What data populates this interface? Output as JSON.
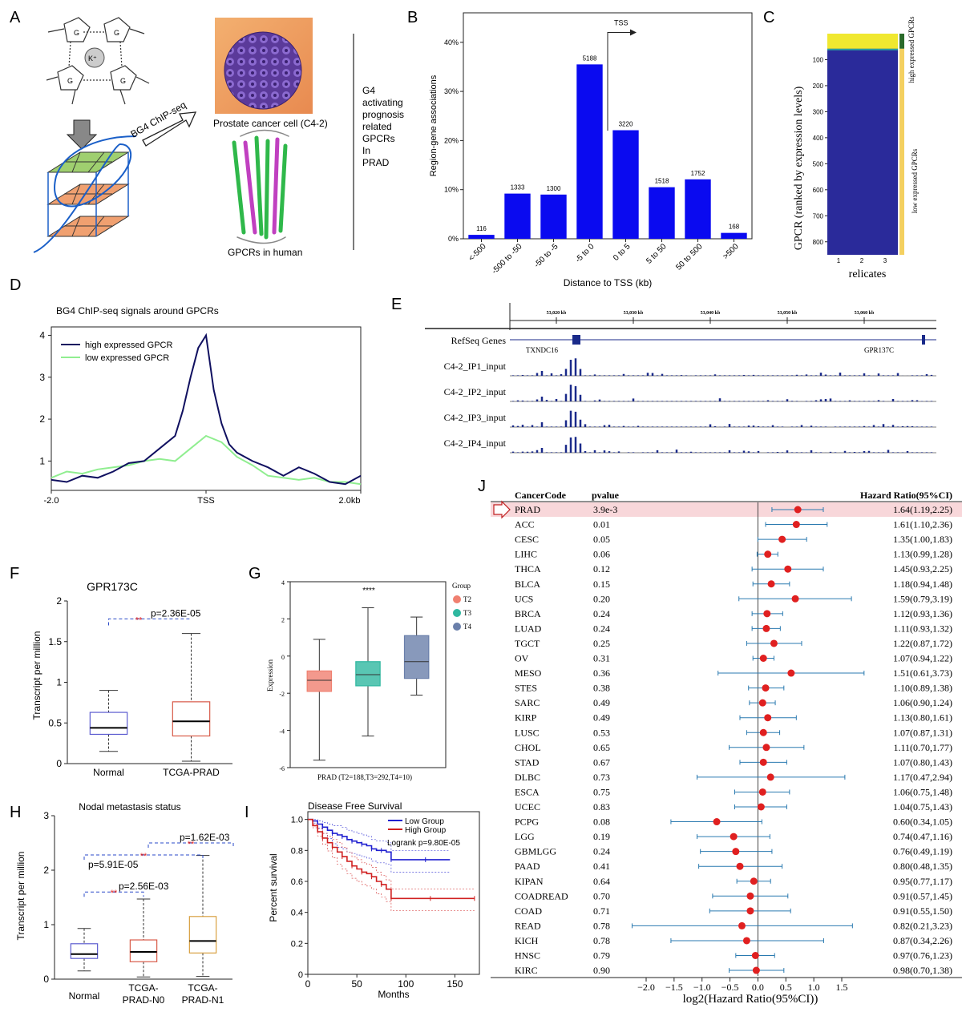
{
  "panels": {
    "A": "A",
    "B": "B",
    "C": "C",
    "D": "D",
    "E": "E",
    "F": "F",
    "G": "G",
    "H": "H",
    "I": "I",
    "J": "J"
  },
  "panelA": {
    "ion_label": "K⁺",
    "g_label": "G",
    "method": "BG4 ChIP-seq",
    "cell_caption": "Prostate cancer cell (C4-2)",
    "gpcr_caption": "GPCRs in human",
    "side_text": [
      "G4",
      "activating",
      "prognosis",
      "related",
      "GPCRs",
      "In",
      "PRAD"
    ]
  },
  "chart_data": [
    {
      "id": "B",
      "type": "bar",
      "categories": [
        "<-500",
        "-500 to -50",
        "-50 to -5",
        "-5 to 0",
        "0 to 5",
        "5 to 50",
        "50 to 500",
        ">500"
      ],
      "values": [
        0.8,
        9.2,
        9.0,
        35.5,
        22.1,
        10.5,
        12.1,
        1.2
      ],
      "data_labels": [
        "116",
        "1333",
        "1300",
        "5188",
        "3220",
        "1518",
        "1752",
        "168"
      ],
      "xlabel": "Distance to TSS (kb)",
      "ylabel": "Region-gene associations",
      "yticks": [
        "0%",
        "10%",
        "20%",
        "30%",
        "40%"
      ],
      "ylim": [
        0,
        46
      ],
      "annotation": "TSS",
      "color": "#0a0af0"
    },
    {
      "id": "C",
      "type": "heatmap",
      "ylabel": "GPCR (ranked by expression levels)",
      "xlabel": "relicates",
      "xticks": [
        "1",
        "2",
        "3"
      ],
      "yticks": [
        "100",
        "200",
        "300",
        "400",
        "500",
        "600",
        "700",
        "800"
      ],
      "ylim": [
        0,
        850
      ],
      "high_band": [
        0,
        58
      ],
      "mid_band": [
        58,
        64
      ],
      "side_high": "high expressed GPCRs",
      "side_low": "low expressed GPCRs",
      "colors": {
        "high": "#f0e830",
        "mid": "#2aa0a0",
        "low": "#2a2a9a"
      }
    },
    {
      "id": "D",
      "type": "line",
      "title": "BG4 ChIP-seq signals around GPCRs",
      "xticks": [
        "-2.0",
        "TSS",
        "2.0kb"
      ],
      "yticks": [
        "1",
        "2",
        "3",
        "4"
      ],
      "ylim": [
        0.3,
        4.2
      ],
      "series": [
        {
          "name": "high expressed GPCR",
          "color": "#101060",
          "x": [
            -2,
            -1.8,
            -1.6,
            -1.4,
            -1.2,
            -1.0,
            -0.8,
            -0.6,
            -0.4,
            -0.3,
            -0.2,
            -0.1,
            0,
            0.1,
            0.2,
            0.3,
            0.4,
            0.6,
            0.8,
            1.0,
            1.2,
            1.4,
            1.6,
            1.8,
            2.0
          ],
          "y": [
            0.55,
            0.5,
            0.65,
            0.6,
            0.75,
            0.95,
            1.0,
            1.3,
            1.6,
            2.2,
            3.0,
            3.7,
            4.0,
            2.7,
            1.9,
            1.4,
            1.2,
            1.0,
            0.85,
            0.65,
            0.85,
            0.7,
            0.5,
            0.45,
            0.65
          ]
        },
        {
          "name": "low expressed GPCR",
          "color": "#90ee90",
          "x": [
            -2,
            -1.8,
            -1.6,
            -1.4,
            -1.2,
            -1.0,
            -0.8,
            -0.6,
            -0.4,
            -0.2,
            0,
            0.2,
            0.4,
            0.6,
            0.8,
            1.0,
            1.2,
            1.4,
            1.6,
            1.8,
            2.0
          ],
          "y": [
            0.6,
            0.75,
            0.7,
            0.8,
            0.85,
            0.9,
            1.0,
            1.05,
            1.0,
            1.3,
            1.6,
            1.45,
            1.1,
            0.9,
            0.65,
            0.6,
            0.55,
            0.6,
            0.5,
            0.5,
            0.45
          ]
        }
      ]
    },
    {
      "id": "E",
      "type": "genome-track",
      "coords": [
        "53,020 kb",
        "53,030 kb",
        "53,040 kb",
        "53,050 kb",
        "53,060 kb"
      ],
      "gene_track": "RefSeq Genes",
      "genes": [
        "TXNDC16",
        "GPR137C"
      ],
      "tracks": [
        "C4-2_IP1_input",
        "C4-2_IP2_input",
        "C4-2_IP3_input",
        "C4-2_IP4_input"
      ]
    },
    {
      "id": "F",
      "type": "box",
      "title": "GPR173C",
      "categories": [
        "Normal",
        "TCGA-PRAD"
      ],
      "boxes": [
        {
          "min": 0.15,
          "q1": 0.36,
          "median": 0.44,
          "q3": 0.63,
          "max": 0.9,
          "color": "#5b5bd0"
        },
        {
          "min": 0.03,
          "q1": 0.34,
          "median": 0.52,
          "q3": 0.76,
          "max": 1.6,
          "color": "#d85a48"
        }
      ],
      "ylabel": "Transcript per million",
      "yticks": [
        "0",
        "0.5",
        "1",
        "1.5",
        "2"
      ],
      "ylim": [
        0,
        2
      ],
      "sig_stars": "**",
      "pvalue": "p=2.36E-05"
    },
    {
      "id": "G",
      "type": "box",
      "categories": [
        "T2",
        "T3",
        "T4"
      ],
      "boxes": [
        {
          "min": -5.6,
          "q1": -1.9,
          "median": -1.3,
          "q3": -0.8,
          "max": 0.9,
          "color": "#f08070"
        },
        {
          "min": -4.3,
          "q1": -1.6,
          "median": -1.0,
          "q3": -0.3,
          "max": 2.6,
          "color": "#2fb8a0"
        },
        {
          "min": -2.1,
          "q1": -1.2,
          "median": -0.3,
          "q3": 1.1,
          "max": 2.1,
          "color": "#6a7faa"
        }
      ],
      "ylabel": "Expression",
      "yticks": [
        "-6",
        "-4",
        "-2",
        "0",
        "2",
        "4"
      ],
      "ylim": [
        -6,
        4
      ],
      "sig": "****",
      "xlabel": "PRAD (T2=188,T3=292,T4=10)",
      "legend_title": "Group",
      "legend": [
        "T2",
        "T3",
        "T4"
      ]
    },
    {
      "id": "H",
      "type": "box",
      "title": "Nodal metastasis status",
      "categories": [
        "Normal",
        "TCGA-PRAD-N0",
        "TCGA-PRAD-N1"
      ],
      "category_lines": [
        [
          "Normal"
        ],
        [
          "TCGA-",
          "PRAD-N0"
        ],
        [
          "TCGA-",
          "PRAD-N1"
        ]
      ],
      "boxes": [
        {
          "min": 0.15,
          "q1": 0.38,
          "median": 0.46,
          "q3": 0.65,
          "max": 0.93,
          "color": "#5b5bd0"
        },
        {
          "min": 0.04,
          "q1": 0.32,
          "median": 0.5,
          "q3": 0.72,
          "max": 1.47,
          "color": "#d85a48"
        },
        {
          "min": 0.05,
          "q1": 0.48,
          "median": 0.7,
          "q3": 1.15,
          "max": 2.27,
          "color": "#d8a040"
        }
      ],
      "ylabel": "Transcript per million",
      "yticks": [
        "0",
        "1",
        "2",
        "3"
      ],
      "ylim": [
        0,
        3
      ],
      "comparisons": [
        {
          "stars": "**",
          "pvalue": "p=2.56E-03"
        },
        {
          "stars": "**",
          "pvalue": "p=5.91E-05"
        },
        {
          "stars": "**",
          "pvalue": "p=1.62E-03"
        }
      ]
    },
    {
      "id": "I",
      "type": "line",
      "subtype": "kaplan-meier",
      "title": "Disease Free Survival",
      "xlabel": "Months",
      "ylabel": "Percent survival",
      "xticks": [
        "0",
        "50",
        "100",
        "150"
      ],
      "xlim": [
        0,
        175
      ],
      "yticks": [
        "0",
        "0.2",
        "0.4",
        "0.6",
        "0.8",
        "1.0"
      ],
      "ylim": [
        0,
        1.05
      ],
      "logrank": "Logrank p=9.80E-05",
      "series": [
        {
          "name": "Low Group",
          "color": "#2020d0",
          "x": [
            0,
            5,
            10,
            15,
            20,
            25,
            30,
            35,
            40,
            45,
            50,
            55,
            60,
            65,
            70,
            75,
            80,
            85,
            100,
            120,
            145
          ],
          "y": [
            1.0,
            0.99,
            0.97,
            0.95,
            0.93,
            0.91,
            0.9,
            0.89,
            0.87,
            0.86,
            0.85,
            0.84,
            0.83,
            0.81,
            0.8,
            0.8,
            0.79,
            0.74,
            0.74,
            0.74,
            0.74
          ]
        },
        {
          "name": "High Group",
          "color": "#d02020",
          "x": [
            0,
            5,
            10,
            15,
            20,
            25,
            30,
            35,
            40,
            45,
            50,
            55,
            60,
            65,
            70,
            75,
            80,
            85,
            100,
            125,
            150,
            170
          ],
          "y": [
            1.0,
            0.96,
            0.92,
            0.88,
            0.85,
            0.82,
            0.79,
            0.76,
            0.73,
            0.7,
            0.68,
            0.66,
            0.65,
            0.63,
            0.6,
            0.58,
            0.55,
            0.49,
            0.49,
            0.49,
            0.49,
            0.49
          ]
        }
      ]
    },
    {
      "id": "J",
      "type": "forest",
      "headers": {
        "code": "CancerCode",
        "pvalue": "pvalue",
        "hr": "Hazard Ratio(95%CI)"
      },
      "xlabel": "log2(Hazard Ratio(95%CI))",
      "xticks": [
        "−2.0",
        "−1.5",
        "−1.0",
        "−0.5",
        "0.0",
        "0.5",
        "1.0",
        "1.5"
      ],
      "xlim": [
        -2.2,
        1.9
      ],
      "highlight": "PRAD",
      "rows": [
        {
          "code": "PRAD",
          "p": "3.9e-3",
          "hr": "1.64(1.19,2.25)",
          "est": 1.64,
          "lo": 1.19,
          "hi": 2.25
        },
        {
          "code": "ACC",
          "p": "0.01",
          "hr": "1.61(1.10,2.36)",
          "est": 1.61,
          "lo": 1.1,
          "hi": 2.36
        },
        {
          "code": "CESC",
          "p": "0.05",
          "hr": "1.35(1.00,1.83)",
          "est": 1.35,
          "lo": 1.0,
          "hi": 1.83
        },
        {
          "code": "LIHC",
          "p": "0.06",
          "hr": "1.13(0.99,1.28)",
          "est": 1.13,
          "lo": 0.99,
          "hi": 1.28
        },
        {
          "code": "THCA",
          "p": "0.12",
          "hr": "1.45(0.93,2.25)",
          "est": 1.45,
          "lo": 0.93,
          "hi": 2.25
        },
        {
          "code": "BLCA",
          "p": "0.15",
          "hr": "1.18(0.94,1.48)",
          "est": 1.18,
          "lo": 0.94,
          "hi": 1.48
        },
        {
          "code": "UCS",
          "p": "0.20",
          "hr": "1.59(0.79,3.19)",
          "est": 1.59,
          "lo": 0.79,
          "hi": 3.19
        },
        {
          "code": "BRCA",
          "p": "0.24",
          "hr": "1.12(0.93,1.36)",
          "est": 1.12,
          "lo": 0.93,
          "hi": 1.36
        },
        {
          "code": "LUAD",
          "p": "0.24",
          "hr": "1.11(0.93,1.32)",
          "est": 1.11,
          "lo": 0.93,
          "hi": 1.32
        },
        {
          "code": "TGCT",
          "p": "0.25",
          "hr": "1.22(0.87,1.72)",
          "est": 1.22,
          "lo": 0.87,
          "hi": 1.72
        },
        {
          "code": "OV",
          "p": "0.31",
          "hr": "1.07(0.94,1.22)",
          "est": 1.07,
          "lo": 0.94,
          "hi": 1.22
        },
        {
          "code": "MESO",
          "p": "0.36",
          "hr": "1.51(0.61,3.73)",
          "est": 1.51,
          "lo": 0.61,
          "hi": 3.73
        },
        {
          "code": "STES",
          "p": "0.38",
          "hr": "1.10(0.89,1.38)",
          "est": 1.1,
          "lo": 0.89,
          "hi": 1.38
        },
        {
          "code": "SARC",
          "p": "0.49",
          "hr": "1.06(0.90,1.24)",
          "est": 1.06,
          "lo": 0.9,
          "hi": 1.24
        },
        {
          "code": "KIRP",
          "p": "0.49",
          "hr": "1.13(0.80,1.61)",
          "est": 1.13,
          "lo": 0.8,
          "hi": 1.61
        },
        {
          "code": "LUSC",
          "p": "0.53",
          "hr": "1.07(0.87,1.31)",
          "est": 1.07,
          "lo": 0.87,
          "hi": 1.31
        },
        {
          "code": "CHOL",
          "p": "0.65",
          "hr": "1.11(0.70,1.77)",
          "est": 1.11,
          "lo": 0.7,
          "hi": 1.77
        },
        {
          "code": "STAD",
          "p": "0.67",
          "hr": "1.07(0.80,1.43)",
          "est": 1.07,
          "lo": 0.8,
          "hi": 1.43
        },
        {
          "code": "DLBC",
          "p": "0.73",
          "hr": "1.17(0.47,2.94)",
          "est": 1.17,
          "lo": 0.47,
          "hi": 2.94
        },
        {
          "code": "ESCA",
          "p": "0.75",
          "hr": "1.06(0.75,1.48)",
          "est": 1.06,
          "lo": 0.75,
          "hi": 1.48
        },
        {
          "code": "UCEC",
          "p": "0.83",
          "hr": "1.04(0.75,1.43)",
          "est": 1.04,
          "lo": 0.75,
          "hi": 1.43
        },
        {
          "code": "PCPG",
          "p": "0.08",
          "hr": "0.60(0.34,1.05)",
          "est": 0.6,
          "lo": 0.34,
          "hi": 1.05
        },
        {
          "code": "LGG",
          "p": "0.19",
          "hr": "0.74(0.47,1.16)",
          "est": 0.74,
          "lo": 0.47,
          "hi": 1.16
        },
        {
          "code": "GBMLGG",
          "p": "0.24",
          "hr": "0.76(0.49,1.19)",
          "est": 0.76,
          "lo": 0.49,
          "hi": 1.19
        },
        {
          "code": "PAAD",
          "p": "0.41",
          "hr": "0.80(0.48,1.35)",
          "est": 0.8,
          "lo": 0.48,
          "hi": 1.35
        },
        {
          "code": "KIPAN",
          "p": "0.64",
          "hr": "0.95(0.77,1.17)",
          "est": 0.95,
          "lo": 0.77,
          "hi": 1.17
        },
        {
          "code": "COADREAD",
          "p": "0.70",
          "hr": "0.91(0.57,1.45)",
          "est": 0.91,
          "lo": 0.57,
          "hi": 1.45
        },
        {
          "code": "COAD",
          "p": "0.71",
          "hr": "0.91(0.55,1.50)",
          "est": 0.91,
          "lo": 0.55,
          "hi": 1.5
        },
        {
          "code": "READ",
          "p": "0.78",
          "hr": "0.82(0.21,3.23)",
          "est": 0.82,
          "lo": 0.21,
          "hi": 3.23
        },
        {
          "code": "KICH",
          "p": "0.78",
          "hr": "0.87(0.34,2.26)",
          "est": 0.87,
          "lo": 0.34,
          "hi": 2.26
        },
        {
          "code": "HNSC",
          "p": "0.79",
          "hr": "0.97(0.76,1.23)",
          "est": 0.97,
          "lo": 0.76,
          "hi": 1.23
        },
        {
          "code": "KIRC",
          "p": "0.90",
          "hr": "0.98(0.70,1.38)",
          "est": 0.98,
          "lo": 0.7,
          "hi": 1.38
        }
      ]
    }
  ]
}
